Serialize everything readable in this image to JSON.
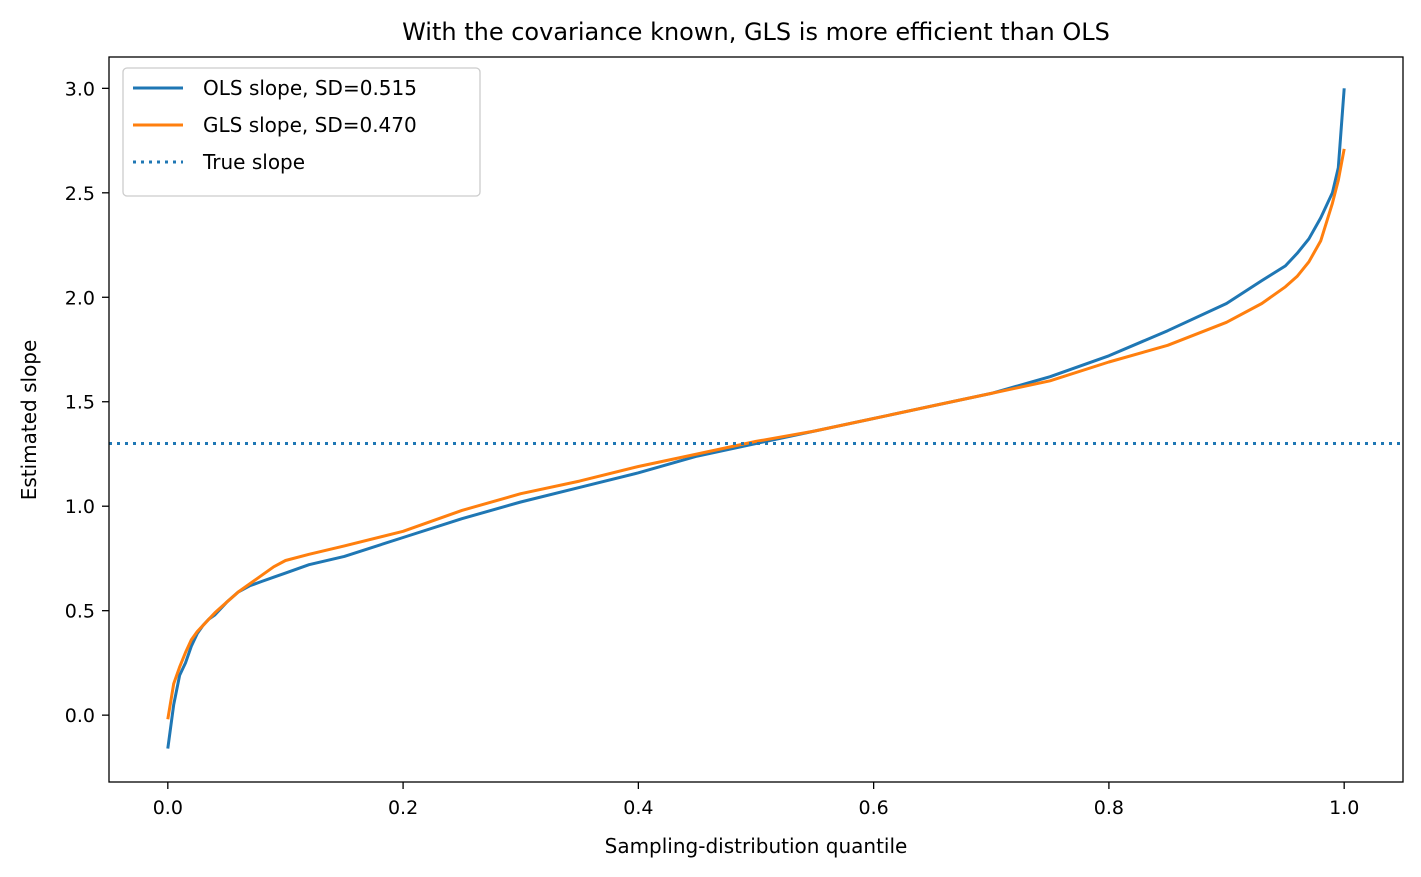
{
  "chart_data": {
    "type": "line",
    "title": "With the covariance known, GLS is more efficient than OLS",
    "xlabel": "Sampling-distribution quantile",
    "ylabel": "Estimated slope",
    "xlim": [
      -0.05,
      1.05
    ],
    "ylim": [
      -0.32,
      3.15
    ],
    "xticks": [
      0.0,
      0.2,
      0.4,
      0.6,
      0.8,
      1.0
    ],
    "xtick_labels": [
      "0.0",
      "0.2",
      "0.4",
      "0.6",
      "0.8",
      "1.0"
    ],
    "yticks": [
      0.0,
      0.5,
      1.0,
      1.5,
      2.0,
      2.5,
      3.0
    ],
    "ytick_labels": [
      "0.0",
      "0.5",
      "1.0",
      "1.5",
      "2.0",
      "2.5",
      "3.0"
    ],
    "grid": false,
    "legend_position": "top-left",
    "series": [
      {
        "name": "OLS slope, SD=0.515",
        "color": "#1f77b4",
        "style": "solid",
        "x": [
          0.0,
          0.005,
          0.01,
          0.015,
          0.02,
          0.025,
          0.03,
          0.035,
          0.04,
          0.05,
          0.06,
          0.07,
          0.08,
          0.09,
          0.1,
          0.12,
          0.15,
          0.2,
          0.25,
          0.3,
          0.35,
          0.4,
          0.45,
          0.5,
          0.55,
          0.6,
          0.65,
          0.7,
          0.75,
          0.8,
          0.85,
          0.9,
          0.93,
          0.95,
          0.96,
          0.97,
          0.98,
          0.99,
          0.995,
          1.0
        ],
        "y": [
          -0.16,
          0.05,
          0.19,
          0.25,
          0.33,
          0.39,
          0.43,
          0.46,
          0.48,
          0.54,
          0.59,
          0.62,
          0.64,
          0.66,
          0.68,
          0.72,
          0.76,
          0.85,
          0.94,
          1.02,
          1.09,
          1.16,
          1.24,
          1.3,
          1.36,
          1.42,
          1.48,
          1.54,
          1.62,
          1.72,
          1.84,
          1.97,
          2.08,
          2.15,
          2.21,
          2.28,
          2.38,
          2.5,
          2.62,
          3.0
        ]
      },
      {
        "name": "GLS slope, SD=0.470",
        "color": "#ff7f0e",
        "style": "solid",
        "x": [
          0.0,
          0.005,
          0.01,
          0.015,
          0.02,
          0.025,
          0.03,
          0.035,
          0.04,
          0.05,
          0.06,
          0.07,
          0.08,
          0.09,
          0.1,
          0.12,
          0.15,
          0.2,
          0.25,
          0.3,
          0.35,
          0.4,
          0.45,
          0.5,
          0.55,
          0.6,
          0.65,
          0.7,
          0.75,
          0.8,
          0.85,
          0.9,
          0.93,
          0.95,
          0.96,
          0.97,
          0.98,
          0.99,
          0.995,
          1.0
        ],
        "y": [
          -0.02,
          0.15,
          0.23,
          0.3,
          0.36,
          0.4,
          0.43,
          0.46,
          0.49,
          0.54,
          0.59,
          0.63,
          0.67,
          0.71,
          0.74,
          0.77,
          0.81,
          0.88,
          0.98,
          1.06,
          1.12,
          1.19,
          1.25,
          1.31,
          1.36,
          1.42,
          1.48,
          1.54,
          1.6,
          1.69,
          1.77,
          1.88,
          1.97,
          2.05,
          2.1,
          2.17,
          2.27,
          2.45,
          2.56,
          2.71
        ]
      },
      {
        "name": "True slope",
        "color": "#1f77b4",
        "style": "dotted",
        "y_const": 1.3
      }
    ]
  }
}
